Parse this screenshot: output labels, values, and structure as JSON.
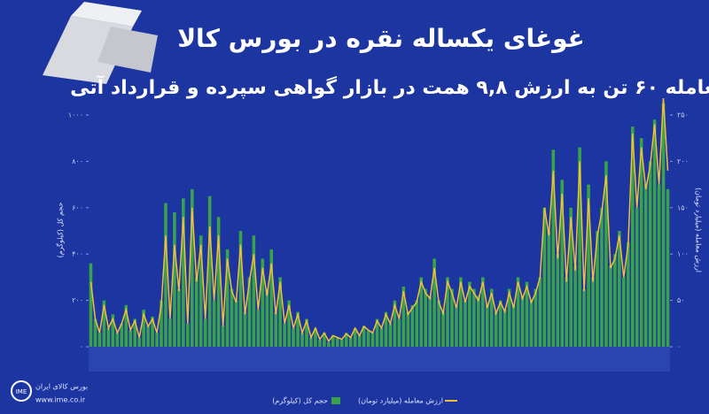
{
  "chart_data": {
    "type": "combo",
    "title": "غوغای یکساله نقره در بورس کالا",
    "subtitle": "معامله ۶۰ تن به ارزش ۹,۸ همت در بازار گواهی سپرده و قرارداد آتی",
    "y_label": "حجم کل (کیلوگرم)",
    "y2_label": "ارزش معامله (میلیارد تومان)",
    "source": "بورس کالای ایران",
    "website": "www.ime.co.ir",
    "categories": [
      null,
      null,
      null,
      null,
      null,
      null,
      null,
      null,
      null,
      null,
      null,
      null,
      null,
      null,
      null,
      null,
      null,
      null,
      null,
      null,
      null,
      null,
      null,
      null,
      null,
      null,
      null,
      null,
      null,
      null,
      null,
      null,
      null,
      null,
      null,
      null,
      null,
      null,
      null,
      null,
      null,
      null,
      null,
      null,
      null,
      null,
      null,
      null,
      null,
      null,
      null,
      null,
      null,
      null,
      null,
      null,
      null,
      null,
      null,
      null,
      null,
      null,
      null,
      null,
      null,
      null,
      null,
      null,
      null,
      null,
      null,
      null,
      null,
      null,
      null,
      null,
      null,
      null,
      null,
      null,
      null,
      null,
      null,
      null,
      null,
      null,
      null,
      null,
      null,
      null,
      null,
      null,
      null,
      null,
      null,
      null,
      null,
      null,
      null,
      null,
      null,
      null,
      null,
      null,
      null,
      null,
      null,
      null,
      null,
      null,
      null,
      null,
      null,
      null,
      null,
      null,
      null,
      null,
      null,
      null,
      null,
      null,
      null,
      null,
      null,
      null,
      null,
      null,
      null,
      null,
      null,
      null
    ],
    "series": [
      {
        "name": "حجم کل (کیلوگرم)",
        "type": "bar",
        "color": "#3aa24a",
        "axis": "y",
        "values": [
          360,
          120,
          60,
          200,
          80,
          140,
          60,
          100,
          180,
          70,
          120,
          40,
          160,
          90,
          130,
          60,
          200,
          620,
          120,
          580,
          250,
          640,
          100,
          680,
          300,
          480,
          120,
          650,
          200,
          560,
          90,
          420,
          250,
          200,
          500,
          150,
          300,
          480,
          160,
          380,
          250,
          420,
          150,
          300,
          100,
          200,
          80,
          150,
          60,
          120,
          40,
          80,
          30,
          60,
          20,
          50,
          40,
          30,
          60,
          40,
          80,
          50,
          90,
          70,
          60,
          120,
          80,
          150,
          100,
          200,
          120,
          260,
          150,
          180,
          200,
          300,
          250,
          220,
          380,
          200,
          150,
          300,
          250,
          180,
          300,
          200,
          280,
          250,
          220,
          300,
          180,
          250,
          150,
          200,
          160,
          250,
          180,
          300,
          220,
          280,
          200,
          250,
          300,
          600,
          500,
          850,
          400,
          720,
          300,
          600,
          350,
          860,
          250,
          700,
          300,
          500,
          600,
          800,
          350,
          400,
          500,
          300,
          450,
          950,
          600,
          900,
          700,
          800,
          980,
          700,
          1050,
          680
        ]
      },
      {
        "name": "ارزش معامله (میلیارد تومان)",
        "type": "line",
        "color": "#f0c03a",
        "axis": "y2",
        "values": [
          70,
          30,
          15,
          45,
          20,
          30,
          15,
          25,
          40,
          18,
          28,
          10,
          35,
          22,
          30,
          15,
          45,
          120,
          30,
          110,
          60,
          140,
          25,
          150,
          70,
          110,
          30,
          130,
          50,
          120,
          22,
          95,
          60,
          48,
          110,
          35,
          70,
          100,
          40,
          85,
          55,
          90,
          35,
          70,
          25,
          45,
          20,
          35,
          15,
          28,
          10,
          20,
          8,
          15,
          6,
          12,
          10,
          8,
          14,
          10,
          20,
          12,
          22,
          18,
          15,
          28,
          20,
          35,
          25,
          45,
          30,
          60,
          35,
          42,
          48,
          70,
          58,
          52,
          85,
          48,
          36,
          70,
          58,
          42,
          70,
          48,
          65,
          58,
          50,
          70,
          42,
          58,
          36,
          48,
          38,
          58,
          42,
          70,
          52,
          65,
          48,
          58,
          75,
          150,
          120,
          190,
          95,
          165,
          70,
          140,
          82,
          200,
          60,
          160,
          70,
          120,
          145,
          185,
          85,
          95,
          120,
          75,
          110,
          230,
          150,
          215,
          170,
          195,
          240,
          175,
          268,
          190
        ]
      }
    ],
    "ylim": [
      0,
      1000
    ],
    "yticks": [
      {
        "value": 0,
        "label": "۰"
      },
      {
        "value": 200,
        "label": "۲۰۰"
      },
      {
        "value": 400,
        "label": "۴۰۰"
      },
      {
        "value": 600,
        "label": "۶۰۰"
      },
      {
        "value": 800,
        "label": "۸۰۰"
      },
      {
        "value": 1000,
        "label": "۱۰۰۰"
      }
    ],
    "y2lim": [
      0,
      250
    ],
    "y2ticks": [
      {
        "value": 0,
        "label": "۰"
      },
      {
        "value": 50,
        "label": "۵۰"
      },
      {
        "value": 100,
        "label": "۱۰۰"
      },
      {
        "value": 150,
        "label": "۱۵۰"
      },
      {
        "value": 200,
        "label": "۲۰۰"
      },
      {
        "value": 250,
        "label": "۲۵۰"
      }
    ]
  }
}
